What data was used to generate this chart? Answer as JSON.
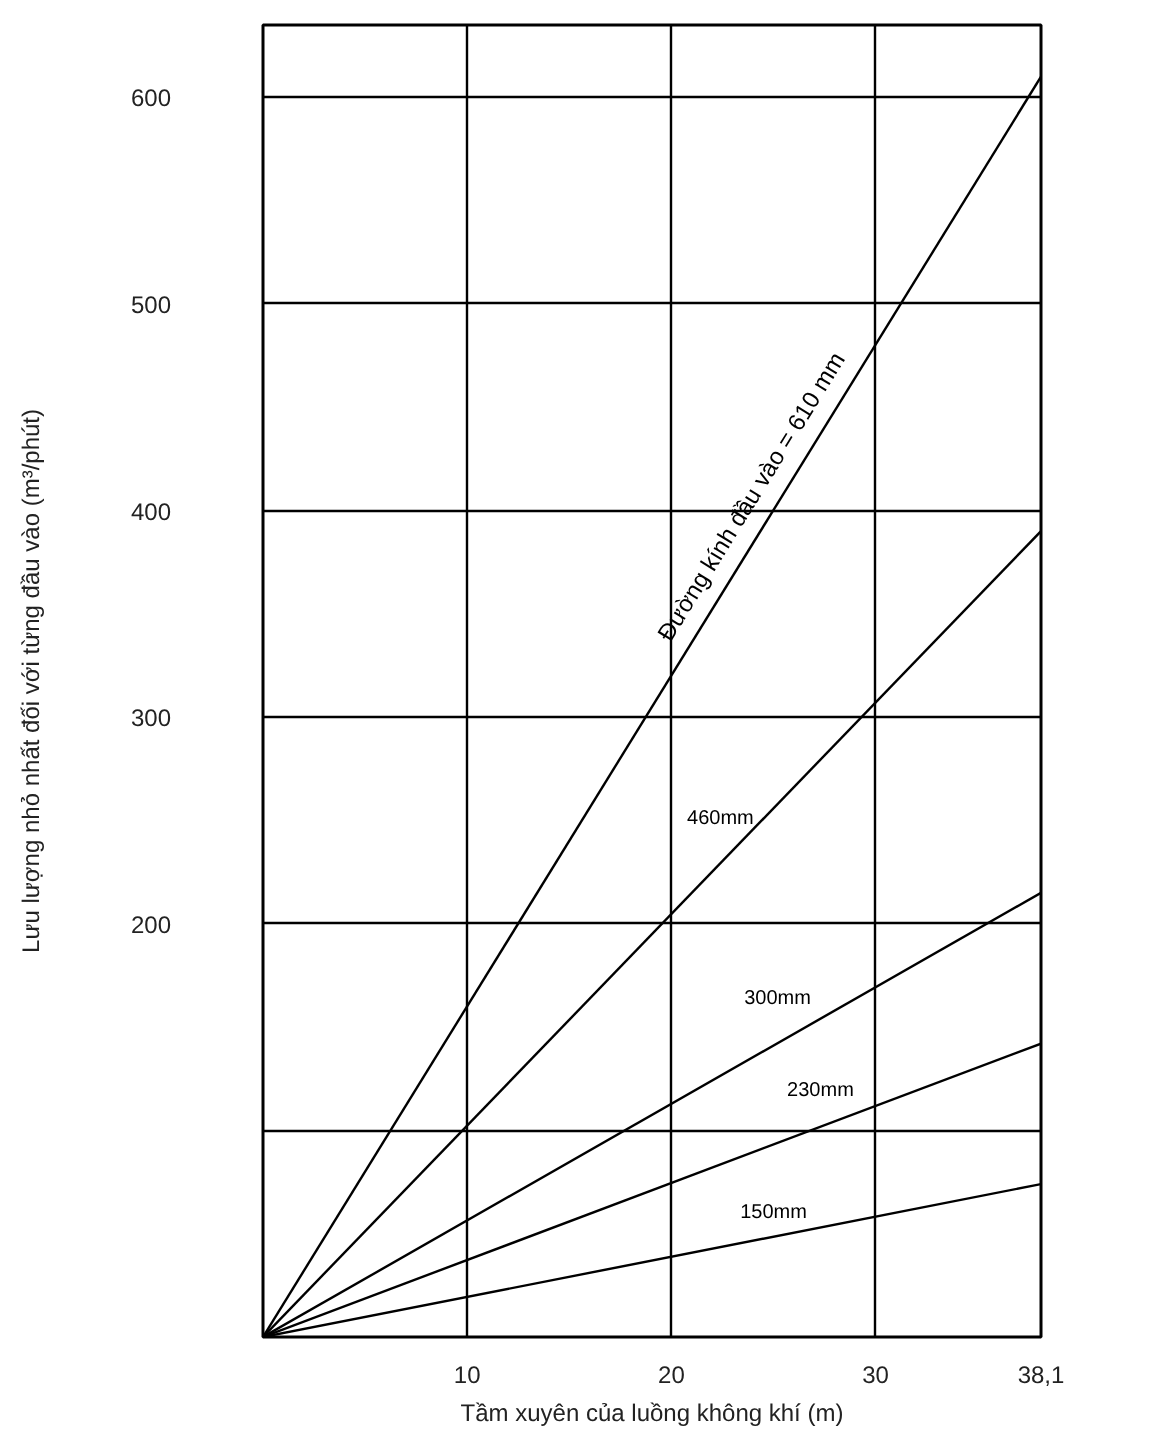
{
  "chart_data": {
    "type": "line",
    "xlabel": "Tầm xuyên của luồng không khí (m)",
    "ylabel": "Lưu lượng nhỏ nhất đối với từng đầu vào (m³/phút)",
    "x": [
      0,
      38.1
    ],
    "series": [
      {
        "name": "Đường kính đầu vào = 610 mm",
        "color": "#000000",
        "values": [
          0,
          610
        ]
      },
      {
        "name": "460mm",
        "color": "#000000",
        "values": [
          0,
          390
        ]
      },
      {
        "name": "300mm",
        "color": "#000000",
        "values": [
          0,
          215
        ]
      },
      {
        "name": "230mm",
        "color": "#000000",
        "values": [
          0,
          142
        ]
      },
      {
        "name": "150mm",
        "color": "#000000",
        "values": [
          0,
          74
        ]
      }
    ],
    "xlim": [
      0,
      38.1
    ],
    "ylim": [
      0,
      635
    ],
    "xticks": [
      10,
      20,
      30,
      {
        "value": 38.1,
        "label": "38,1"
      }
    ],
    "yticks": [
      {
        "value": 100,
        "label": null
      },
      200,
      300,
      400,
      500,
      600
    ],
    "grid": true,
    "marker": "none",
    "line_style": "solid"
  }
}
